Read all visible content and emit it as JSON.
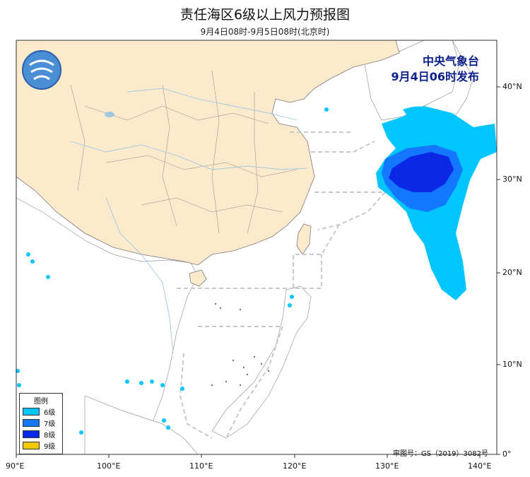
{
  "title": "责任海区6级以上风力预报图",
  "subtitle": "9月4日08时-9月5日08时(北京时)",
  "publisher": {
    "name": "中央气象台",
    "issued": "9月4日06时发布"
  },
  "legend": {
    "title": "图例",
    "items": [
      {
        "label": "6级",
        "color": "#00c5ff"
      },
      {
        "label": "7级",
        "color": "#1478ff"
      },
      {
        "label": "8级",
        "color": "#0a28e6"
      },
      {
        "label": "9级",
        "color": "#f2c800"
      }
    ]
  },
  "review_number": "审图号：GS（2019）3082号",
  "axes": {
    "x_ticks": [
      "90°E",
      "100°E",
      "110°E",
      "120°E",
      "130°E",
      "140°E"
    ],
    "y_ticks": [
      "0°",
      "10°N",
      "20°N",
      "30°N",
      "40°N"
    ]
  },
  "colors": {
    "land": "#fde9cc",
    "sea": "#ffffff",
    "rivers": "#9ecae1",
    "boundaries": "#888888",
    "region_lines": "#c8c8c8"
  },
  "logo_icon": "cma-logo-icon"
}
